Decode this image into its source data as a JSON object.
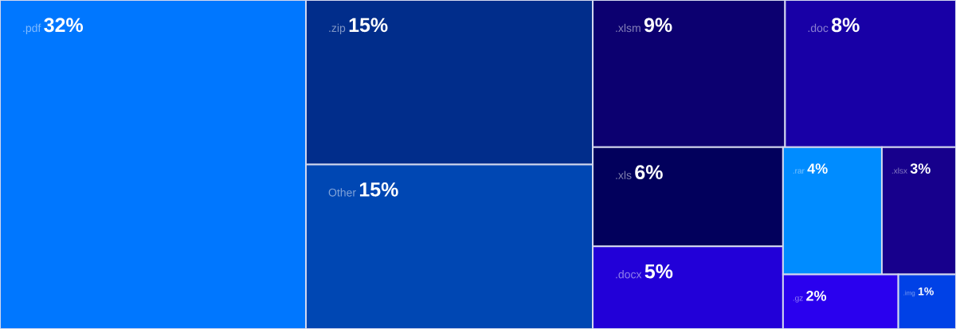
{
  "chart_data": {
    "type": "other",
    "categories": [
      ".pdf",
      ".zip",
      "Other",
      ".xlsm",
      ".doc",
      ".xls",
      ".docx",
      ".rar",
      ".xlsx",
      ".gz",
      ".img"
    ],
    "values": [
      32,
      15,
      15,
      9,
      8,
      6,
      5,
      4,
      3,
      2,
      1
    ],
    "value_labels": [
      "32%",
      "15%",
      "15%",
      "9%",
      "8%",
      "6%",
      "5%",
      "4%",
      "3%",
      "2%",
      "1%"
    ],
    "colors": [
      "#0077ff",
      "#012d8b",
      "#0047b3",
      "#0c0070",
      "#1800a6",
      "#02005c",
      "#2200d8",
      "#008cff",
      "#17008c",
      "#2a00ee",
      "#0041e6"
    ]
  }
}
